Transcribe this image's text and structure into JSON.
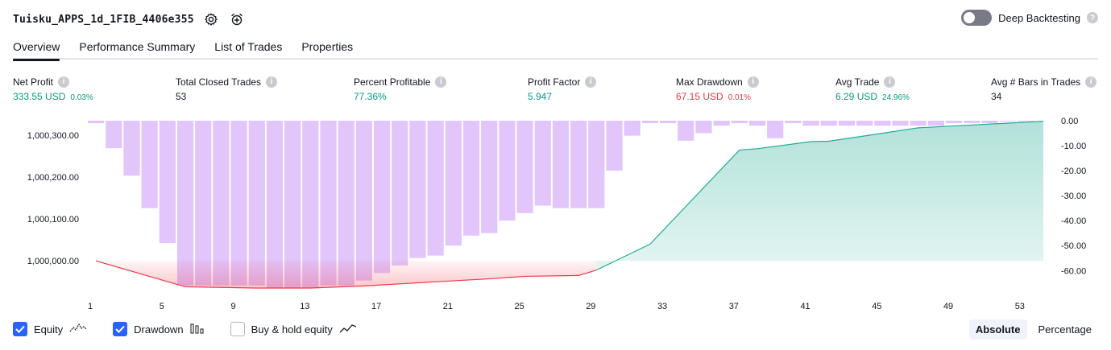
{
  "header": {
    "strategy_name": "Tuisku_APPS_1d_1FIB_4406e355",
    "settings_icon": "gear-icon",
    "alert_icon": "alarm-clock-plus-icon",
    "deep_backtesting_label": "Deep Backtesting",
    "deep_backtesting_on": false
  },
  "tabs": [
    {
      "label": "Overview",
      "active": true
    },
    {
      "label": "Performance Summary",
      "active": false
    },
    {
      "label": "List of Trades",
      "active": false
    },
    {
      "label": "Properties",
      "active": false
    }
  ],
  "stats": [
    {
      "label": "Net Profit",
      "value": "333.55 USD",
      "pct": "0.03%",
      "color": "#089981"
    },
    {
      "label": "Total Closed Trades",
      "value": "53",
      "pct": "",
      "color": "#131722"
    },
    {
      "label": "Percent Profitable",
      "value": "77.36%",
      "pct": "",
      "color": "#089981"
    },
    {
      "label": "Profit Factor",
      "value": "5.947",
      "pct": "",
      "color": "#089981"
    },
    {
      "label": "Max Drawdown",
      "value": "67.15 USD",
      "pct": "0.01%",
      "color": "#f23645"
    },
    {
      "label": "Avg Trade",
      "value": "6.29 USD",
      "pct": "24.96%",
      "color": "#089981"
    },
    {
      "label": "Avg # Bars in Trades",
      "value": "34",
      "pct": "",
      "color": "#131722"
    }
  ],
  "chart_data": {
    "type": "line",
    "x_ticks": [
      "1",
      "5",
      "9",
      "13",
      "17",
      "21",
      "25",
      "29",
      "33",
      "37",
      "41",
      "45",
      "49",
      "53"
    ],
    "xlim": [
      1,
      54
    ],
    "left_axis": {
      "ticks": [
        "1,000,300.00",
        "1,000,200.00",
        "1,000,100.00",
        "1,000,000.00"
      ],
      "tick_values": [
        1000300,
        1000200,
        1000100,
        1000000
      ],
      "ylim": [
        999935,
        1000335
      ]
    },
    "right_axis": {
      "ticks": [
        "0.00",
        "-10.00",
        "-20.00",
        "-30.00",
        "-40.00",
        "-50.00",
        "-60.00"
      ],
      "tick_values": [
        0,
        -10,
        -20,
        -30,
        -40,
        -50,
        -60
      ],
      "ylim": [
        -67,
        0
      ]
    },
    "equity": {
      "x": [
        1,
        6,
        10,
        13,
        16,
        20,
        23,
        25,
        28,
        29,
        32,
        37,
        38,
        41,
        42,
        45,
        47,
        54
      ],
      "y": [
        1000000,
        999938,
        999935,
        999935,
        999940,
        999950,
        999957,
        999963,
        999965,
        999978,
        1000040,
        1000265,
        1000268,
        1000285,
        1000286,
        1000305,
        1000318,
        1000333.55
      ],
      "color_below_start": "#f23645",
      "color_above_start": "#22ab94"
    },
    "drawdown": {
      "x": [
        1,
        2,
        3,
        4,
        5,
        6,
        7,
        8,
        9,
        10,
        11,
        12,
        13,
        14,
        15,
        16,
        17,
        18,
        19,
        20,
        21,
        22,
        23,
        24,
        25,
        26,
        27,
        28,
        29,
        30,
        31,
        32,
        33,
        34,
        35,
        36,
        37,
        38,
        39,
        40,
        41,
        42,
        43,
        44,
        45,
        46,
        47,
        48,
        49,
        50,
        51,
        52,
        53
      ],
      "values": [
        -1,
        -11,
        -22,
        -35,
        -49,
        -66,
        -66,
        -66,
        -66,
        -66,
        -67,
        -67,
        -67,
        -66,
        -66,
        -64,
        -61,
        -58,
        -55,
        -54,
        -50,
        -46,
        -45,
        -40,
        -37,
        -34,
        -35,
        -35,
        -35,
        -20,
        -6,
        -1,
        -1,
        -8,
        -5,
        -2,
        -1,
        -2,
        -7,
        -1,
        -2,
        -2,
        -2,
        -2,
        -2,
        -2,
        -2,
        -2,
        -1,
        -1,
        -1,
        0,
        0
      ],
      "color": "#ce93d8"
    },
    "benchmark": {
      "name": "Buy & hold equity",
      "visible": false
    }
  },
  "legend": [
    {
      "label": "Equity",
      "checked": true,
      "icon": "equity-line-icon"
    },
    {
      "label": "Drawdown",
      "checked": true,
      "icon": "drawdown-bars-icon"
    },
    {
      "label": "Buy & hold equity",
      "checked": false,
      "icon": "buy-hold-line-icon"
    }
  ],
  "scale": {
    "absolute_label": "Absolute",
    "percentage_label": "Percentage",
    "selected": "Absolute"
  }
}
